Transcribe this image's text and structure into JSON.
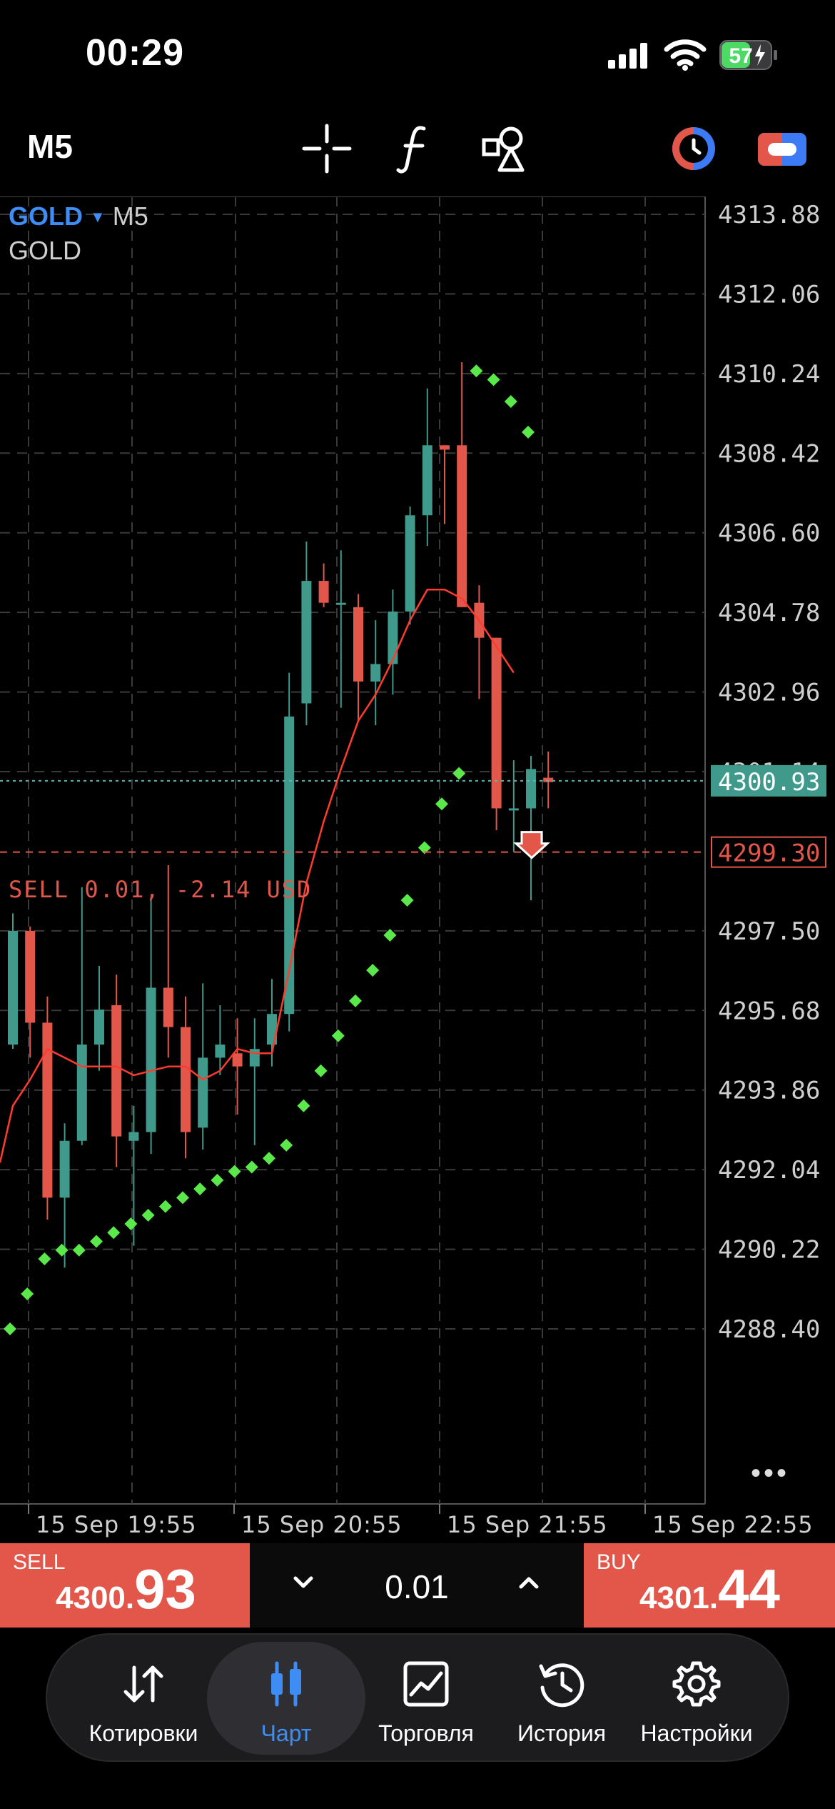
{
  "status_bar": {
    "time": "00:29",
    "battery": "57"
  },
  "toolbar": {
    "timeframe": "M5",
    "icons": [
      "crosshair-icon",
      "function-icon",
      "objects-icon",
      "one-click-trading-icon",
      "account-toggle-icon"
    ]
  },
  "chart": {
    "symbol": "GOLD",
    "timeframe": "M5",
    "symbol_description": "GOLD",
    "price_axis": [
      "4313.88",
      "4312.06",
      "4310.24",
      "4308.42",
      "4306.60",
      "4304.78",
      "4302.96",
      "4301.14",
      "4300.93",
      "4299.30",
      "4297.50",
      "4295.68",
      "4293.86",
      "4292.04",
      "4290.22",
      "4288.40"
    ],
    "time_axis": [
      "15 Sep 19:55",
      "15 Sep 20:55",
      "15 Sep 21:55",
      "15 Sep 22:55"
    ],
    "current_bid": "4300.93",
    "order_line": {
      "label": "SELL 0.01, -2.14 USD",
      "price": "4299.30"
    },
    "colors": {
      "bull": "#3f9a8c",
      "bear": "#e2574a",
      "sar": "#5be84a",
      "ma": "#ff3b30",
      "bid_line": "#5fb3b3"
    }
  },
  "chart_data": {
    "type": "candlestick",
    "title": "GOLD, M5",
    "ylim": [
      4287.0,
      4315.0
    ],
    "candles": [
      {
        "o": 4294.9,
        "h": 4297.9,
        "l": 4294.8,
        "c": 4297.5
      },
      {
        "o": 4297.5,
        "h": 4297.6,
        "l": 4294.6,
        "c": 4295.4
      },
      {
        "o": 4295.4,
        "h": 4296.0,
        "l": 4290.9,
        "c": 4291.4
      },
      {
        "o": 4291.4,
        "h": 4293.1,
        "l": 4289.8,
        "c": 4292.7
      },
      {
        "o": 4292.7,
        "h": 4298.5,
        "l": 4292.6,
        "c": 4294.9
      },
      {
        "o": 4294.9,
        "h": 4296.7,
        "l": 4294.3,
        "c": 4295.7
      },
      {
        "o": 4295.8,
        "h": 4296.5,
        "l": 4292.1,
        "c": 4292.8
      },
      {
        "o": 4292.7,
        "h": 4293.5,
        "l": 4290.3,
        "c": 4292.9
      },
      {
        "o": 4292.9,
        "h": 4298.2,
        "l": 4292.4,
        "c": 4296.2
      },
      {
        "o": 4296.2,
        "h": 4299.0,
        "l": 4294.6,
        "c": 4295.3
      },
      {
        "o": 4295.3,
        "h": 4296.0,
        "l": 4292.3,
        "c": 4292.9
      },
      {
        "o": 4293.0,
        "h": 4296.3,
        "l": 4292.5,
        "c": 4294.6
      },
      {
        "o": 4294.6,
        "h": 4295.8,
        "l": 4294.2,
        "c": 4294.9
      },
      {
        "o": 4294.7,
        "h": 4295.5,
        "l": 4293.3,
        "c": 4294.4
      },
      {
        "o": 4294.4,
        "h": 4295.5,
        "l": 4292.6,
        "c": 4294.8
      },
      {
        "o": 4294.9,
        "h": 4296.4,
        "l": 4294.4,
        "c": 4295.6
      },
      {
        "o": 4295.6,
        "h": 4303.4,
        "l": 4295.2,
        "c": 4302.4
      },
      {
        "o": 4302.7,
        "h": 4306.4,
        "l": 4302.2,
        "c": 4305.5
      },
      {
        "o": 4305.5,
        "h": 4305.9,
        "l": 4304.9,
        "c": 4305.0
      },
      {
        "o": 4305.0,
        "h": 4306.2,
        "l": 4302.6,
        "c": 4305.0
      },
      {
        "o": 4304.9,
        "h": 4305.2,
        "l": 4302.3,
        "c": 4303.2
      },
      {
        "o": 4303.2,
        "h": 4304.6,
        "l": 4302.2,
        "c": 4303.6
      },
      {
        "o": 4303.6,
        "h": 4305.3,
        "l": 4302.9,
        "c": 4304.8
      },
      {
        "o": 4304.8,
        "h": 4307.2,
        "l": 4304.5,
        "c": 4307.0
      },
      {
        "o": 4307.0,
        "h": 4309.9,
        "l": 4306.3,
        "c": 4308.6
      },
      {
        "o": 4308.6,
        "h": 4308.6,
        "l": 4306.8,
        "c": 4308.5
      },
      {
        "o": 4308.6,
        "h": 4310.5,
        "l": 4304.9,
        "c": 4304.9
      },
      {
        "o": 4305.0,
        "h": 4305.4,
        "l": 4302.8,
        "c": 4304.2
      },
      {
        "o": 4304.2,
        "h": 4304.2,
        "l": 4299.8,
        "c": 4300.3
      },
      {
        "o": 4300.3,
        "h": 4301.4,
        "l": 4299.3,
        "c": 4300.3
      },
      {
        "o": 4300.3,
        "h": 4301.5,
        "l": 4298.2,
        "c": 4301.2
      },
      {
        "o": 4301.0,
        "h": 4301.6,
        "l": 4300.3,
        "c": 4300.9
      }
    ],
    "sar": [
      4288.4,
      4289.2,
      4290.0,
      4290.2,
      4290.2,
      4290.4,
      4290.6,
      4290.8,
      4291.0,
      4291.2,
      4291.4,
      4291.6,
      4291.8,
      4292.0,
      4292.1,
      4292.3,
      4292.6,
      4293.5,
      4294.3,
      4295.1,
      4295.9,
      4296.6,
      4297.4,
      4298.2,
      4299.4,
      4300.4,
      4301.1,
      4310.3,
      4310.1,
      4309.6,
      4308.9
    ],
    "ma": [
      4293.5,
      4294.1,
      4294.8,
      4294.6,
      4294.4,
      4294.4,
      4294.4,
      4294.2,
      4294.3,
      4294.4,
      4294.4,
      4294.1,
      4294.3,
      4294.8,
      4294.7,
      4294.7,
      4296.6,
      4298.6,
      4300.0,
      4301.2,
      4302.3,
      4302.9,
      4303.7,
      4304.6,
      4305.3,
      4305.3,
      4305.1,
      4304.6,
      4304.0,
      4303.4
    ],
    "sell_marker": 4299.3
  },
  "trade_bar": {
    "sell_label": "SELL",
    "sell_price_small": "4300.",
    "sell_price_big": "93",
    "buy_label": "BUY",
    "buy_price_small": "4301.",
    "buy_price_big": "44",
    "lot": "0.01"
  },
  "nav": {
    "items": [
      {
        "label": "Котировки",
        "icon": "quotes-icon"
      },
      {
        "label": "Чарт",
        "icon": "chart-icon"
      },
      {
        "label": "Торговля",
        "icon": "trade-icon"
      },
      {
        "label": "История",
        "icon": "history-icon"
      },
      {
        "label": "Настройки",
        "icon": "settings-icon"
      }
    ],
    "active": "Чарт"
  }
}
